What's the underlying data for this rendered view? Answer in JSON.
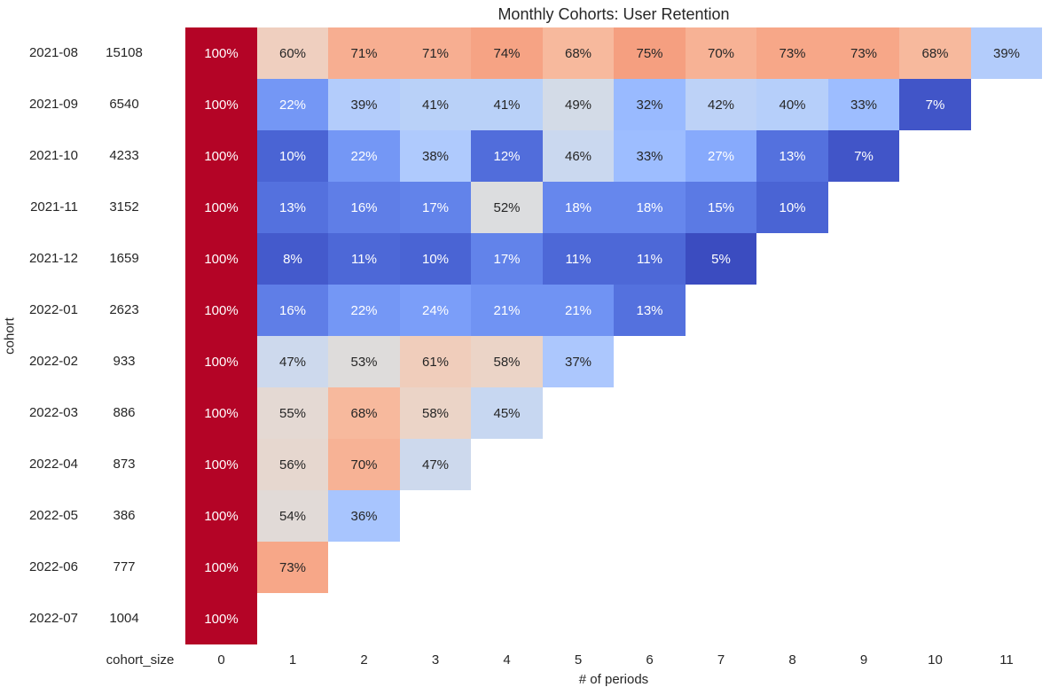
{
  "chart_data": {
    "type": "heatmap",
    "title": "Monthly Cohorts: User Retention",
    "xlabel": "# of periods",
    "ylabel": "cohort",
    "size_column_header": "cohort_size",
    "x_ticks": [
      "0",
      "1",
      "2",
      "3",
      "4",
      "5",
      "6",
      "7",
      "8",
      "9",
      "10",
      "11"
    ],
    "value_suffix": "%",
    "vmin": 5,
    "vmax": 100,
    "colormap": {
      "name": "coolwarm",
      "stops": [
        "#3b4cc0",
        "#445acc",
        "#4d68d7",
        "#5775e1",
        "#6282ea",
        "#6c8ef1",
        "#779af7",
        "#82a5fb",
        "#8db0fe",
        "#98b9ff",
        "#a3c2ff",
        "#aec9fd",
        "#b8d0f9",
        "#c2d5f4",
        "#ccd9ee",
        "#d5dbe6",
        "#dddddd",
        "#e5d8d1",
        "#ecd3c5",
        "#f1ccb9",
        "#f5c4ad",
        "#f7bba0",
        "#f7b194",
        "#f7a687",
        "#f49a7b",
        "#f18d6f",
        "#ec7f63",
        "#e57058",
        "#de604d",
        "#d55042",
        "#cb3e38",
        "#c0282f",
        "#b40426"
      ]
    },
    "annotation_colors": {
      "dark_text": "#262626",
      "light_text": "#ffffff"
    },
    "rows": [
      {
        "cohort": "2021-08",
        "cohort_size": 15108,
        "retention": [
          100,
          60,
          71,
          71,
          74,
          68,
          75,
          70,
          73,
          73,
          68,
          39
        ]
      },
      {
        "cohort": "2021-09",
        "cohort_size": 6540,
        "retention": [
          100,
          22,
          39,
          41,
          41,
          49,
          32,
          42,
          40,
          33,
          7
        ]
      },
      {
        "cohort": "2021-10",
        "cohort_size": 4233,
        "retention": [
          100,
          10,
          22,
          38,
          12,
          46,
          33,
          27,
          13,
          7
        ]
      },
      {
        "cohort": "2021-11",
        "cohort_size": 3152,
        "retention": [
          100,
          13,
          16,
          17,
          52,
          18,
          18,
          15,
          10
        ]
      },
      {
        "cohort": "2021-12",
        "cohort_size": 1659,
        "retention": [
          100,
          8,
          11,
          10,
          17,
          11,
          11,
          5
        ]
      },
      {
        "cohort": "2022-01",
        "cohort_size": 2623,
        "retention": [
          100,
          16,
          22,
          24,
          21,
          21,
          13
        ]
      },
      {
        "cohort": "2022-02",
        "cohort_size": 933,
        "retention": [
          100,
          47,
          53,
          61,
          58,
          37
        ]
      },
      {
        "cohort": "2022-03",
        "cohort_size": 886,
        "retention": [
          100,
          55,
          68,
          58,
          45
        ]
      },
      {
        "cohort": "2022-04",
        "cohort_size": 873,
        "retention": [
          100,
          56,
          70,
          47
        ]
      },
      {
        "cohort": "2022-05",
        "cohort_size": 386,
        "retention": [
          100,
          54,
          36
        ]
      },
      {
        "cohort": "2022-06",
        "cohort_size": 777,
        "retention": [
          100,
          73
        ]
      },
      {
        "cohort": "2022-07",
        "cohort_size": 1004,
        "retention": [
          100
        ]
      }
    ]
  }
}
